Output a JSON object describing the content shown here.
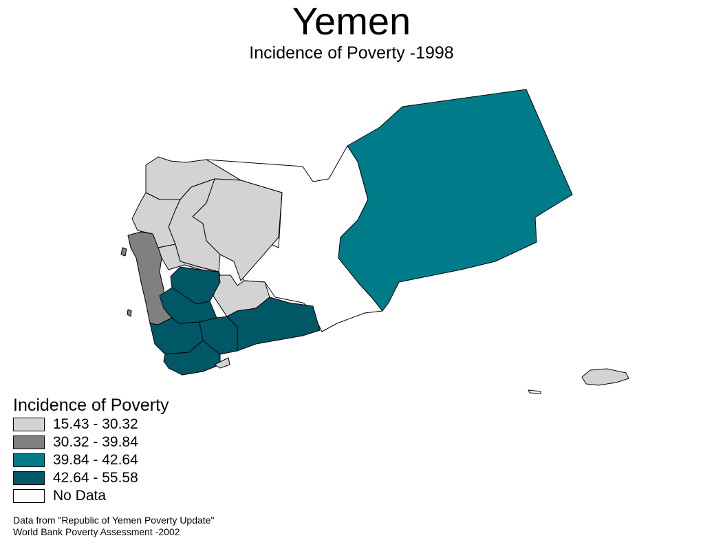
{
  "title": "Yemen",
  "subtitle": "Incidence of Poverty -1998",
  "legend": {
    "title": "Incidence of Poverty",
    "items": [
      {
        "label": "15.43 - 30.32",
        "color": "#d3d3d3"
      },
      {
        "label": "30.32 - 39.84",
        "color": "#808080"
      },
      {
        "label": "39.84 - 42.64",
        "color": "#007b8a"
      },
      {
        "label": "42.64 - 55.58",
        "color": "#005866"
      },
      {
        "label": "No Data",
        "color": "#ffffff"
      }
    ]
  },
  "source": {
    "line1": "Data from \"Republic of Yemen Poverty Update\"",
    "line2": "World Bank Poverty Assessment -2002"
  }
}
